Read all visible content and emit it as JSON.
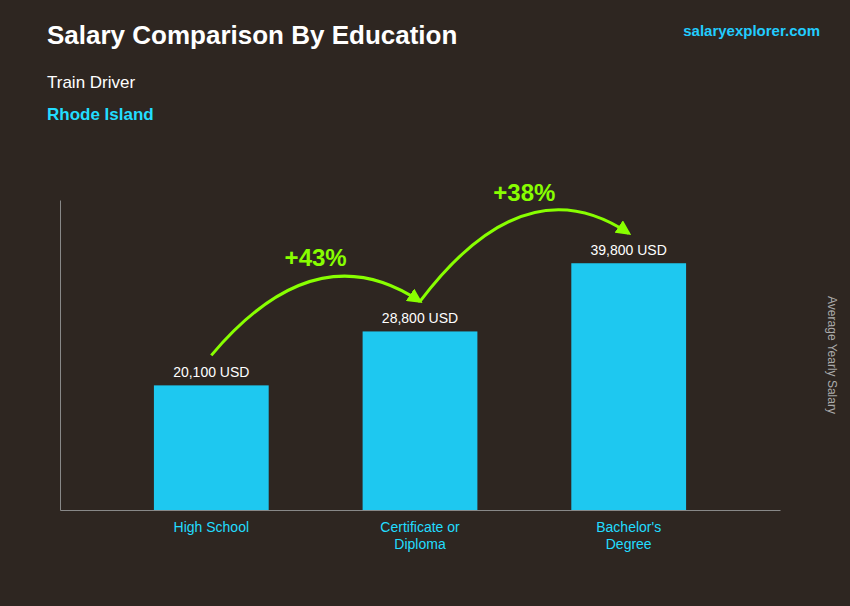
{
  "chart_data": {
    "type": "bar",
    "title": "Salary Comparison By Education",
    "subtitle": [
      "Train Driver",
      "Rhode Island"
    ],
    "source": "salaryexplorer.com",
    "ylabel": "Average Yearly Salary",
    "categories": [
      "High School",
      "Certificate or\nDiploma",
      "Bachelor's\nDegree"
    ],
    "values": [
      20100,
      28800,
      39800
    ],
    "value_labels": [
      "20,100 USD",
      "28,800 USD",
      "39,800 USD"
    ],
    "annotations": [
      "+43%",
      "+38%"
    ],
    "color": "#1EC8F0",
    "ylim": [
      0,
      50000
    ],
    "data_labels": true,
    "tick_labels": "x"
  }
}
